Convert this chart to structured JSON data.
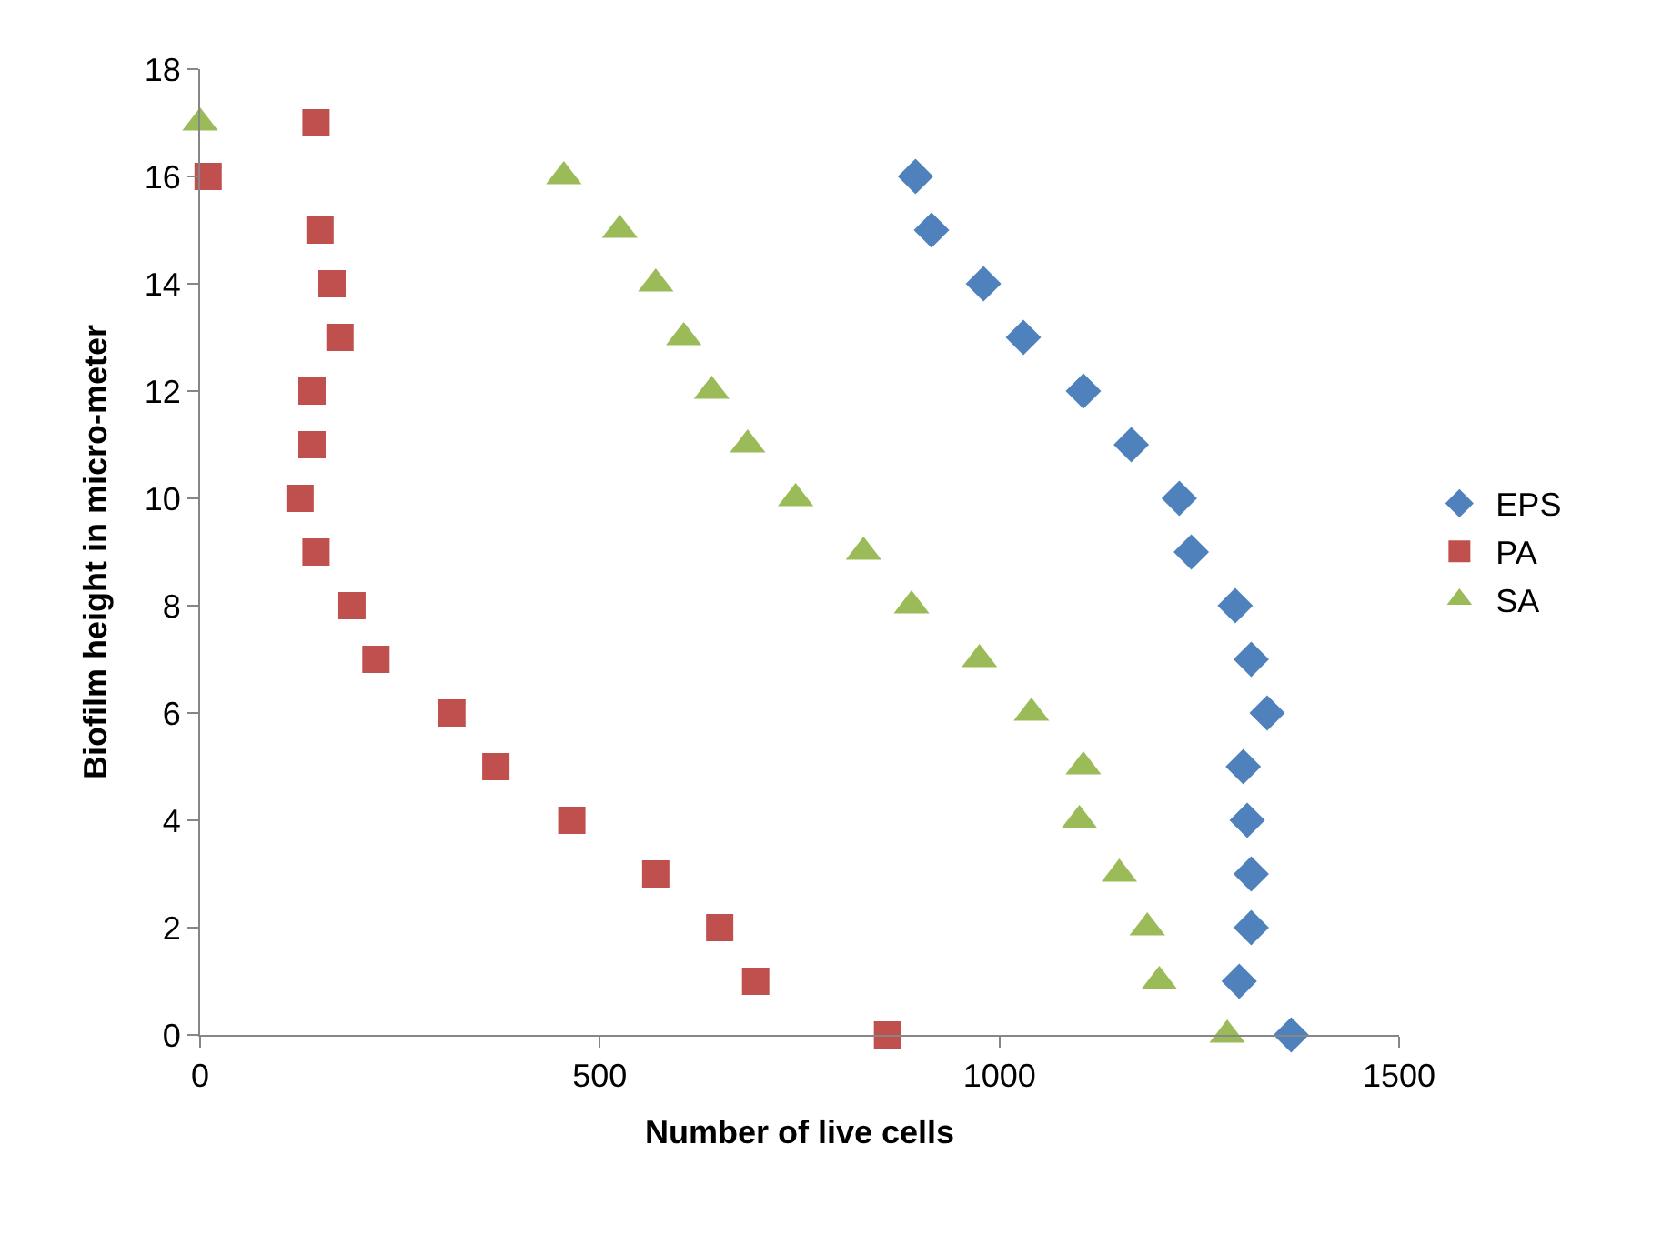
{
  "chart_data": {
    "type": "scatter",
    "xlabel": "Number of live cells",
    "ylabel": "Biofilm height in micro-meter",
    "xlim": [
      0,
      1500
    ],
    "xticks": [
      0,
      500,
      1000,
      1500
    ],
    "ylim": [
      0,
      18
    ],
    "yticks": [
      0,
      2,
      4,
      6,
      8,
      10,
      12,
      14,
      16,
      18
    ],
    "legend": "right",
    "series": [
      {
        "name": "EPS",
        "color": "#4f81bd",
        "marker": "diamond",
        "x": [
          1365,
          1300,
          1315,
          1315,
          1310,
          1305,
          1335,
          1315,
          1295,
          1240,
          1225,
          1165,
          1105,
          1030,
          980,
          915,
          895
        ],
        "values": [
          0,
          1,
          2,
          3,
          4,
          5,
          6,
          7,
          8,
          9,
          10,
          11,
          12,
          13,
          14,
          15,
          16
        ]
      },
      {
        "name": "PA",
        "color": "#c0504d",
        "marker": "square",
        "x": [
          860,
          695,
          650,
          570,
          465,
          370,
          315,
          220,
          190,
          145,
          125,
          140,
          140,
          175,
          165,
          150,
          10,
          145
        ],
        "values": [
          0,
          1,
          2,
          3,
          4,
          5,
          6,
          7,
          8,
          9,
          10,
          11,
          12,
          13,
          14,
          15,
          16,
          17
        ]
      },
      {
        "name": "SA",
        "color": "#9bbb59",
        "marker": "triangle",
        "x": [
          1285,
          1200,
          1185,
          1150,
          1100,
          1105,
          1040,
          975,
          890,
          830,
          745,
          685,
          640,
          605,
          570,
          525,
          455,
          0
        ],
        "values": [
          0,
          1,
          2,
          3,
          4,
          5,
          6,
          7,
          8,
          9,
          10,
          11,
          12,
          13,
          14,
          15,
          16,
          17
        ]
      }
    ]
  }
}
